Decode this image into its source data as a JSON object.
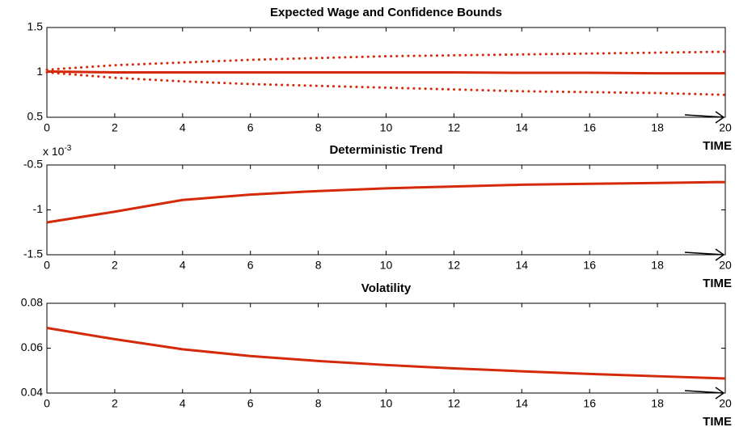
{
  "chart_data": [
    {
      "type": "line",
      "title": "Expected Wage and Confidence Bounds",
      "xlabel": "TIME",
      "x": [
        0,
        2,
        4,
        6,
        8,
        10,
        12,
        14,
        16,
        18,
        20
      ],
      "series": [
        {
          "color": "#d42a0a",
          "linestyle": "dotted",
          "values": [
            1.03,
            1.08,
            1.11,
            1.14,
            1.16,
            1.18,
            1.19,
            1.2,
            1.21,
            1.22,
            1.23
          ]
        },
        {
          "color": "#d42a0a",
          "linestyle": "solid",
          "values": [
            1.01,
            1.0,
            1.0,
            1.0,
            1.0,
            1.0,
            1.0,
            0.995,
            0.995,
            0.99,
            0.99
          ]
        },
        {
          "color": "#d42a0a",
          "linestyle": "dotted",
          "values": [
            1.0,
            0.94,
            0.9,
            0.87,
            0.85,
            0.83,
            0.81,
            0.79,
            0.78,
            0.77,
            0.75
          ]
        }
      ],
      "xlim": [
        0,
        20
      ],
      "xticks": [
        0,
        2,
        4,
        6,
        8,
        10,
        12,
        14,
        16,
        18,
        20
      ],
      "ylim": [
        0.5,
        1.5
      ],
      "yticks": [
        0.5,
        1,
        1.5
      ]
    },
    {
      "type": "line",
      "title": "Deterministic Trend",
      "xlabel": "TIME",
      "y_multiplier": {
        "base": "x 10",
        "exponent": "-3"
      },
      "x": [
        0,
        2,
        4,
        6,
        8,
        10,
        12,
        14,
        16,
        18,
        20
      ],
      "series": [
        {
          "color": "#d42a0a",
          "linestyle": "solid",
          "values": [
            -1.14,
            -1.02,
            -0.89,
            -0.83,
            -0.79,
            -0.76,
            -0.74,
            -0.72,
            -0.71,
            -0.7,
            -0.69
          ]
        }
      ],
      "xlim": [
        0,
        20
      ],
      "xticks": [
        0,
        2,
        4,
        6,
        8,
        10,
        12,
        14,
        16,
        18,
        20
      ],
      "ylim": [
        -1.5,
        -0.5
      ],
      "yticks": [
        -1.5,
        -1,
        -0.5
      ]
    },
    {
      "type": "line",
      "title": "Volatility",
      "xlabel": "TIME",
      "x": [
        0,
        2,
        4,
        6,
        8,
        10,
        12,
        14,
        16,
        18,
        20
      ],
      "series": [
        {
          "color": "#d42a0a",
          "linestyle": "solid",
          "values": [
            0.069,
            0.064,
            0.0595,
            0.0565,
            0.0543,
            0.0525,
            0.051,
            0.0497,
            0.0485,
            0.0475,
            0.0465
          ]
        }
      ],
      "xlim": [
        0,
        20
      ],
      "xticks": [
        0,
        2,
        4,
        6,
        8,
        10,
        12,
        14,
        16,
        18,
        20
      ],
      "ylim": [
        0.04,
        0.08
      ],
      "yticks": [
        0.04,
        0.06,
        0.08
      ]
    }
  ]
}
